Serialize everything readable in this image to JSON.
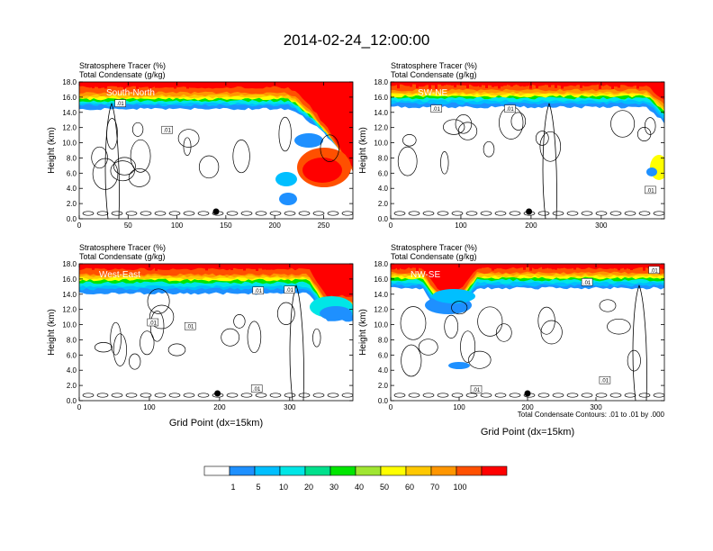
{
  "figure": {
    "title": "2014-02-24_12:00:00",
    "contour_note": "Total Condensate Contours: .01 to .01 by .000"
  },
  "colorbar": {
    "labels": [
      "1",
      "5",
      "10",
      "20",
      "30",
      "40",
      "50",
      "60",
      "70",
      "100"
    ],
    "colors": [
      "#ffffff",
      "#1e90ff",
      "#00bfff",
      "#00e6e6",
      "#00e08c",
      "#00e600",
      "#a0e632",
      "#ffff00",
      "#ffc800",
      "#ff9600",
      "#ff5000",
      "#ff0000"
    ]
  },
  "chart_data": [
    {
      "type": "heatmap",
      "panel_label": "South-North",
      "left_title_line1": "Stratosphere Tracer   (%)",
      "left_title_line2": "Total Condensate   (g/kg)",
      "ylabel": "Height (km)",
      "xlabel": "",
      "xlim": [
        0,
        280
      ],
      "xticks": [
        0,
        50,
        100,
        150,
        200,
        250
      ],
      "ylim": [
        0,
        18
      ],
      "yticks": [
        "0.0",
        "2.0",
        "4.0",
        "6.0",
        "8.0",
        "10.0",
        "12.0",
        "14.0",
        "16.0",
        "18.0"
      ],
      "marker_x": 140,
      "contour_labels": [
        {
          "x": 42,
          "y": 15.2,
          "text": ".01"
        },
        {
          "x": 90,
          "y": 11.7,
          "text": ".01"
        }
      ]
    },
    {
      "type": "heatmap",
      "panel_label": "SW-NE",
      "left_title_line1": "Stratosphere Tracer   (%)",
      "left_title_line2": "Total Condensate   (g/kg)",
      "ylabel": "Height (km)",
      "xlabel": "",
      "xlim": [
        0,
        390
      ],
      "xticks": [
        0,
        100,
        200,
        300
      ],
      "ylim": [
        0,
        18
      ],
      "yticks": [
        "0.0",
        "2.0",
        "4.0",
        "6.0",
        "8.0",
        "10.0",
        "12.0",
        "14.0",
        "16.0",
        "18.0"
      ],
      "marker_x": 197,
      "contour_labels": [
        {
          "x": 65,
          "y": 14.5,
          "text": ".01"
        },
        {
          "x": 170,
          "y": 14.5,
          "text": ".01"
        },
        {
          "x": 370,
          "y": 3.8,
          "text": ".01"
        }
      ]
    },
    {
      "type": "heatmap",
      "panel_label": "West-East",
      "left_title_line1": "Stratosphere Tracer   (%)",
      "left_title_line2": "Total Condensate   (g/kg)",
      "ylabel": "Height (km)",
      "xlabel": "Grid Point (dx=15km)",
      "xlim": [
        0,
        390
      ],
      "xticks": [
        0,
        100,
        200,
        300
      ],
      "ylim": [
        0,
        18
      ],
      "yticks": [
        "0.0",
        "2.0",
        "4.0",
        "6.0",
        "8.0",
        "10.0",
        "12.0",
        "14.0",
        "16.0",
        "18.0"
      ],
      "marker_x": 197,
      "contour_labels": [
        {
          "x": 255,
          "y": 14.5,
          "text": ".01"
        },
        {
          "x": 300,
          "y": 14.6,
          "text": ".01"
        },
        {
          "x": 105,
          "y": 10.3,
          "text": ".01"
        },
        {
          "x": 158,
          "y": 9.8,
          "text": ".01"
        },
        {
          "x": 253,
          "y": 1.6,
          "text": ".01"
        }
      ]
    },
    {
      "type": "heatmap",
      "panel_label": "NW-SE",
      "left_title_line1": "Stratosphere Tracer   (%)",
      "left_title_line2": "Total Condensate   (g/kg)",
      "ylabel": "Height (km)",
      "xlabel": "Grid Point (dx=15km)",
      "xlim": [
        0,
        400
      ],
      "xticks": [
        0,
        100,
        200,
        300
      ],
      "ylim": [
        0,
        18
      ],
      "yticks": [
        "0.0",
        "2.0",
        "4.0",
        "6.0",
        "8.0",
        "10.0",
        "12.0",
        "14.0",
        "16.0",
        "18.0"
      ],
      "marker_x": 200,
      "contour_labels": [
        {
          "x": 287,
          "y": 15.6,
          "text": ".01"
        },
        {
          "x": 385,
          "y": 17.2,
          "text": ".01"
        },
        {
          "x": 313,
          "y": 2.7,
          "text": ".01"
        },
        {
          "x": 125,
          "y": 1.5,
          "text": ".01"
        }
      ]
    }
  ]
}
